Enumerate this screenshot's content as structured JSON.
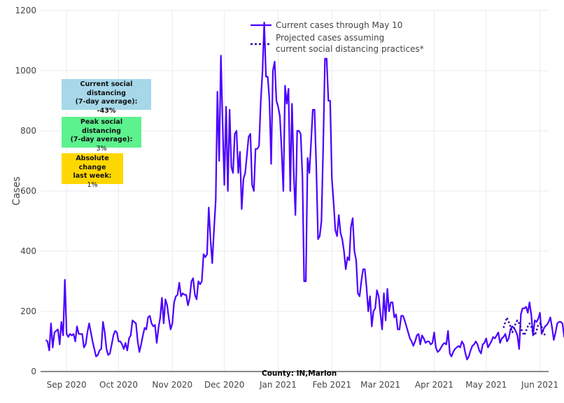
{
  "chart_data": {
    "type": "line",
    "title": "",
    "xlabel": "",
    "ylabel": "Cases",
    "ylim": [
      0,
      1200
    ],
    "xlim": [
      "2020-08-17",
      "2021-06-06"
    ],
    "grid": true,
    "y_ticks": [
      0,
      200,
      400,
      600,
      800,
      1000,
      1200
    ],
    "x_ticks": [
      {
        "date": "2020-09-01",
        "label": "Sep 2020"
      },
      {
        "date": "2020-10-01",
        "label": "Oct 2020"
      },
      {
        "date": "2020-11-01",
        "label": "Nov 2020"
      },
      {
        "date": "2020-12-01",
        "label": "Dec 2020"
      },
      {
        "date": "2021-01-01",
        "label": "Jan 2021"
      },
      {
        "date": "2021-02-01",
        "label": "Feb 2021"
      },
      {
        "date": "2021-03-01",
        "label": "Mar 2021"
      },
      {
        "date": "2021-04-01",
        "label": "Apr 2021"
      },
      {
        "date": "2021-05-01",
        "label": "May 2021"
      },
      {
        "date": "2021-06-01",
        "label": "Jun 2021"
      }
    ],
    "legend_position": "top-center",
    "series": [
      {
        "name": "Current cases through May 10",
        "style": "solid",
        "color": "#4b00ff",
        "start_date": "2020-08-20",
        "step_days": 1,
        "values": [
          105,
          100,
          70,
          160,
          80,
          130,
          135,
          140,
          90,
          165,
          120,
          305,
          125,
          115,
          125,
          120,
          125,
          100,
          150,
          125,
          125,
          125,
          80,
          90,
          130,
          160,
          130,
          100,
          75,
          50,
          55,
          70,
          75,
          165,
          130,
          75,
          55,
          60,
          90,
          120,
          135,
          130,
          100,
          100,
          90,
          75,
          95,
          70,
          110,
          120,
          170,
          165,
          160,
          100,
          65,
          90,
          120,
          145,
          140,
          180,
          185,
          160,
          150,
          155,
          95,
          145,
          180,
          245,
          160,
          240,
          220,
          175,
          140,
          160,
          230,
          250,
          255,
          295,
          250,
          260,
          255,
          255,
          220,
          245,
          300,
          310,
          255,
          240,
          300,
          290,
          300,
          390,
          380,
          390,
          545,
          440,
          360,
          470,
          570,
          930,
          700,
          1050,
          820,
          620,
          880,
          600,
          870,
          680,
          660,
          790,
          800,
          660,
          730,
          540,
          640,
          660,
          720,
          780,
          790,
          620,
          600,
          740,
          740,
          750,
          900,
          1000,
          1160,
          980,
          980,
          900,
          690,
          1000,
          1030,
          900,
          880,
          850,
          740,
          600,
          950,
          890,
          940,
          600,
          890,
          660,
          520,
          800,
          800,
          790,
          650,
          300,
          300,
          710,
          660,
          760,
          870,
          870,
          680,
          440,
          450,
          500,
          750,
          1040,
          1040,
          900,
          900,
          640,
          560,
          470,
          450,
          520,
          460,
          440,
          400,
          340,
          380,
          370,
          480,
          510,
          400,
          370,
          260,
          250,
          300,
          340,
          340,
          280,
          200,
          250,
          150,
          200,
          210,
          270,
          250,
          190,
          140,
          260,
          170,
          275,
          200,
          230,
          230,
          180,
          190,
          140,
          140,
          185,
          185,
          170,
          150,
          130,
          110,
          100,
          85,
          100,
          120,
          125,
          90,
          120,
          110,
          95,
          100,
          100,
          90,
          95,
          130,
          80,
          65,
          70,
          80,
          90,
          95,
          90,
          135,
          60,
          50,
          65,
          75,
          80,
          85,
          80,
          100,
          90,
          60,
          40,
          50,
          70,
          85,
          90,
          100,
          90,
          70,
          60,
          90,
          95,
          110,
          80,
          90,
          100,
          115,
          110,
          120,
          130,
          95,
          110,
          115,
          125,
          100,
          110,
          140,
          150,
          145,
          135,
          120,
          75,
          190,
          210,
          210,
          215,
          195,
          230,
          190,
          120,
          170,
          165,
          175,
          195,
          125,
          140,
          150,
          155,
          165,
          180,
          145,
          105,
          130,
          160,
          165,
          165,
          160,
          115,
          110,
          150,
          170,
          170,
          225,
          180,
          165,
          115,
          130,
          150,
          170,
          200,
          240,
          190,
          150,
          110,
          80
        ]
      },
      {
        "name": "Projected cases assuming current social distancing practices*",
        "style": "dotted",
        "color": "#2a00b0",
        "start_date": "2021-05-11",
        "step_days": 1,
        "values": [
          145,
          165,
          180,
          165,
          150,
          130,
          140,
          160,
          170,
          160,
          145,
          130,
          120,
          135,
          150,
          160,
          150,
          130,
          120,
          135,
          155,
          160,
          150,
          130,
          120
        ]
      }
    ]
  },
  "legend": {
    "current_label": "Current cases through May 10",
    "projected_label_line1": "Projected cases assuming",
    "projected_label_line2": "current social distancing practices*"
  },
  "annotations": {
    "current_distancing": {
      "title_line1": "Current social distancing",
      "title_line2": "(7-day average):",
      "value": "-43%",
      "color": "#a6d8ea"
    },
    "peak_distancing": {
      "title_line1": "Peak social distancing",
      "title_line2": "(7-day average):",
      "value": "3%",
      "color": "#5cf28e"
    },
    "absolute_change": {
      "title_line1": "Absolute change",
      "title_line2": "last week:",
      "value": "1%",
      "color": "#ffd700"
    },
    "county": "County: IN,Marion"
  }
}
